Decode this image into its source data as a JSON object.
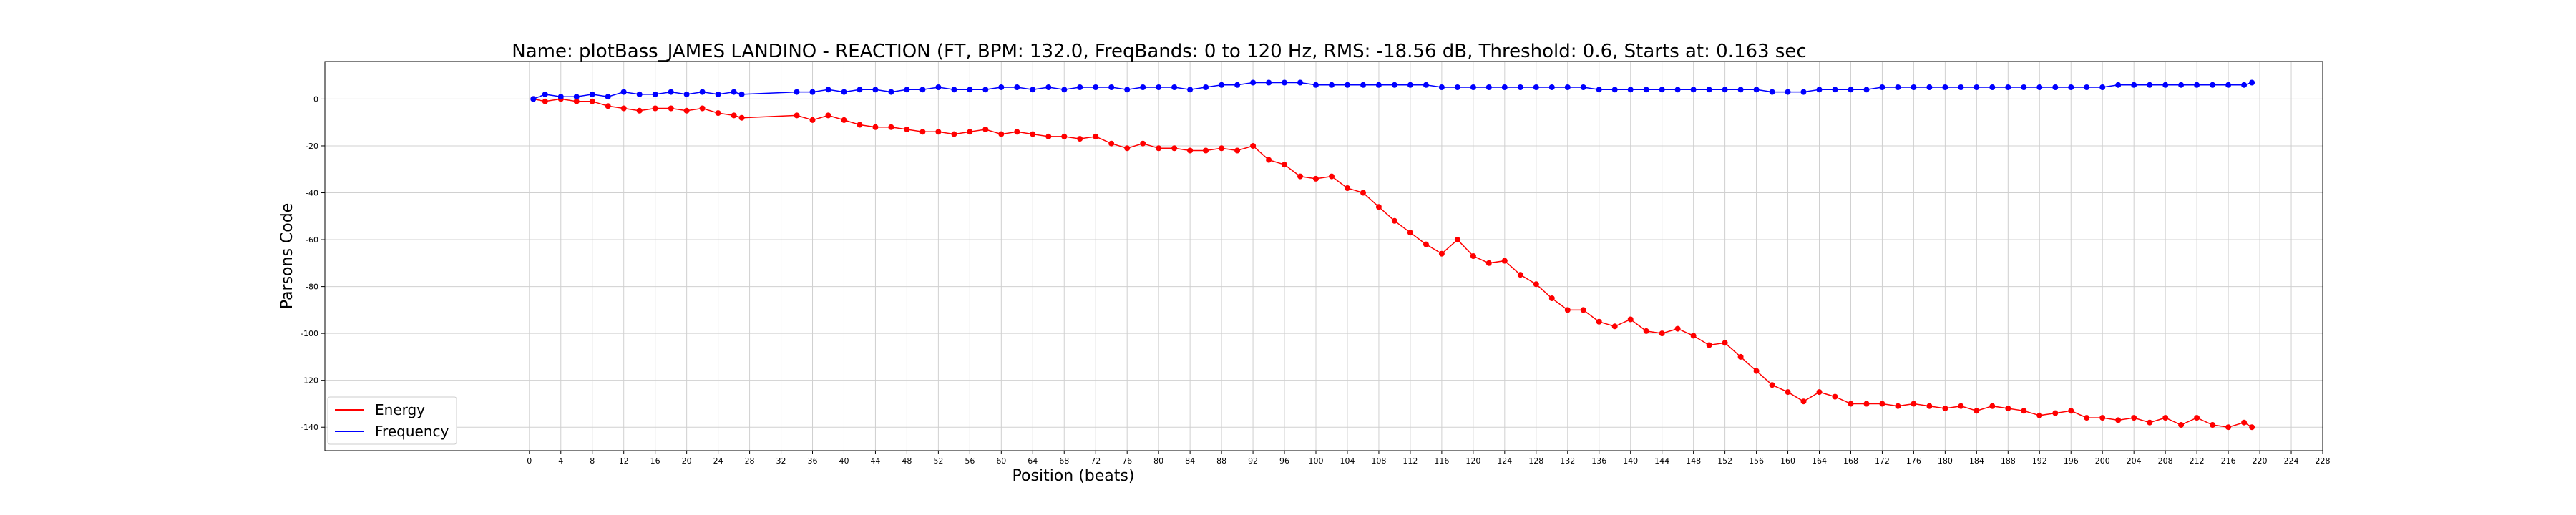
{
  "chart_data": {
    "type": "line",
    "title": "Name: plotBass_JAMES LANDINO - REACTION (FT, BPM: 132.0, FreqBands: 0 to 120 Hz, RMS: -18.56 dB, Threshold: 0.6, Starts at: 0.163 sec",
    "xlabel": "Position (beats)",
    "ylabel": "Parsons Code",
    "xlim": [
      -26,
      228
    ],
    "ylim": [
      -150,
      16
    ],
    "xticks": [
      0,
      4,
      8,
      12,
      16,
      20,
      24,
      28,
      32,
      36,
      40,
      44,
      48,
      52,
      56,
      60,
      64,
      68,
      72,
      76,
      80,
      84,
      88,
      92,
      96,
      100,
      104,
      108,
      112,
      116,
      120,
      124,
      128,
      132,
      136,
      140,
      144,
      148,
      152,
      156,
      160,
      164,
      168,
      172,
      176,
      180,
      184,
      188,
      192,
      196,
      200,
      204,
      208,
      212,
      216,
      220,
      224,
      228
    ],
    "yticks": [
      0,
      -20,
      -40,
      -60,
      -80,
      -100,
      -120,
      -140
    ],
    "grid": true,
    "legend": "lower-left",
    "series": [
      {
        "name": "Energy",
        "color": "#ff0000",
        "x": [
          0.5,
          2,
          4,
          6,
          8,
          10,
          12,
          14,
          16,
          18,
          20,
          22,
          24,
          26,
          27,
          34,
          36,
          38,
          40,
          42,
          44,
          46,
          48,
          50,
          52,
          54,
          56,
          58,
          60,
          62,
          64,
          66,
          68,
          70,
          72,
          74,
          76,
          78,
          80,
          82,
          84,
          86,
          88,
          90,
          92,
          94,
          96,
          98,
          100,
          102,
          104,
          106,
          108,
          110,
          112,
          114,
          116,
          118,
          120,
          122,
          124,
          126,
          128,
          130,
          132,
          134,
          136,
          138,
          140,
          142,
          144,
          146,
          148,
          150,
          152,
          154,
          156,
          158,
          160,
          162,
          164,
          166,
          168,
          170,
          172,
          174,
          176,
          178,
          180,
          182,
          184,
          186,
          188,
          190,
          192,
          194,
          196,
          198,
          200,
          202,
          204,
          206,
          208,
          210,
          212,
          214,
          216,
          218,
          219
        ],
        "y": [
          0,
          -1,
          0,
          -1,
          -1,
          -3,
          -4,
          -5,
          -4,
          -4,
          -5,
          -4,
          -6,
          -7,
          -8,
          -7,
          -9,
          -7,
          -9,
          -11,
          -12,
          -12,
          -13,
          -14,
          -14,
          -15,
          -14,
          -13,
          -15,
          -14,
          -15,
          -16,
          -16,
          -17,
          -16,
          -19,
          -21,
          -19,
          -21,
          -21,
          -22,
          -22,
          -21,
          -22,
          -20,
          -26,
          -28,
          -33,
          -34,
          -33,
          -38,
          -40,
          -46,
          -52,
          -57,
          -62,
          -66,
          -60,
          -67,
          -70,
          -69,
          -75,
          -79,
          -85,
          -90,
          -90,
          -95,
          -97,
          -94,
          -99,
          -100,
          -98,
          -101,
          -105,
          -104,
          -110,
          -116,
          -122,
          -125,
          -129,
          -125,
          -127,
          -130,
          -130,
          -130,
          -131,
          -130,
          -131,
          -132,
          -131,
          -133,
          -131,
          -132,
          -133,
          -135,
          -134,
          -133,
          -136,
          -136,
          -137,
          -136,
          -138,
          -136,
          -139,
          -136,
          -139,
          -140,
          -138,
          -140
        ]
      },
      {
        "name": "Frequency",
        "color": "#0000ff",
        "x": [
          0.5,
          2,
          4,
          6,
          8,
          10,
          12,
          14,
          16,
          18,
          20,
          22,
          24,
          26,
          27,
          34,
          36,
          38,
          40,
          42,
          44,
          46,
          48,
          50,
          52,
          54,
          56,
          58,
          60,
          62,
          64,
          66,
          68,
          70,
          72,
          74,
          76,
          78,
          80,
          82,
          84,
          86,
          88,
          90,
          92,
          94,
          96,
          98,
          100,
          102,
          104,
          106,
          108,
          110,
          112,
          114,
          116,
          118,
          120,
          122,
          124,
          126,
          128,
          130,
          132,
          134,
          136,
          138,
          140,
          142,
          144,
          146,
          148,
          150,
          152,
          154,
          156,
          158,
          160,
          162,
          164,
          166,
          168,
          170,
          172,
          174,
          176,
          178,
          180,
          182,
          184,
          186,
          188,
          190,
          192,
          194,
          196,
          198,
          200,
          202,
          204,
          206,
          208,
          210,
          212,
          214,
          216,
          218,
          219
        ],
        "y": [
          0,
          2,
          1,
          1,
          2,
          1,
          3,
          2,
          2,
          3,
          2,
          3,
          2,
          3,
          2,
          3,
          3,
          4,
          3,
          4,
          4,
          3,
          4,
          4,
          5,
          4,
          4,
          4,
          5,
          5,
          4,
          5,
          4,
          5,
          5,
          5,
          4,
          5,
          5,
          5,
          4,
          5,
          6,
          6,
          7,
          7,
          7,
          7,
          6,
          6,
          6,
          6,
          6,
          6,
          6,
          6,
          5,
          5,
          5,
          5,
          5,
          5,
          5,
          5,
          5,
          5,
          4,
          4,
          4,
          4,
          4,
          4,
          4,
          4,
          4,
          4,
          4,
          3,
          3,
          3,
          4,
          4,
          4,
          4,
          5,
          5,
          5,
          5,
          5,
          5,
          5,
          5,
          5,
          5,
          5,
          5,
          5,
          5,
          5,
          6,
          6,
          6,
          6,
          6,
          6,
          6,
          6,
          6,
          7
        ]
      }
    ]
  }
}
